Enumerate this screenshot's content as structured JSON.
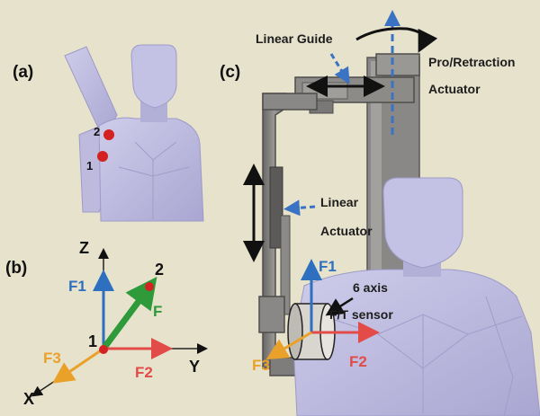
{
  "panels": {
    "a": "(a)",
    "b": "(b)",
    "c": "(c)"
  },
  "panel_a": {
    "point1": "1",
    "point2": "2"
  },
  "panel_b": {
    "axis_z": "Z",
    "axis_y": "Y",
    "axis_x": "X",
    "f1": "F1",
    "f2": "F2",
    "f3": "F3",
    "f": "F",
    "point1": "1",
    "point2": "2"
  },
  "panel_c": {
    "linear_guide": "Linear Guide",
    "pro_retraction_line1": "Pro/Retraction",
    "pro_retraction_line2": "Actuator",
    "linear_actuator_line1": "Linear",
    "linear_actuator_line2": "Actuator",
    "sensor_line1": "6 axis",
    "sensor_line2": "F/T sensor",
    "f1": "F1",
    "f2": "F2",
    "f3": "F3"
  },
  "colors": {
    "background": "#e6e2cc",
    "figure": "#b9b6dc",
    "figure_dark": "#8e8bbf",
    "frame": "#7e7c7a",
    "frame_dark": "#4f4d4c",
    "f1_blue": "#2f6fc0",
    "f2_red": "#e24b48",
    "f3_orange": "#eaa12a",
    "f_green": "#2e9a3a",
    "marker_red": "#d42222",
    "dash_blue": "#3a72c4"
  }
}
